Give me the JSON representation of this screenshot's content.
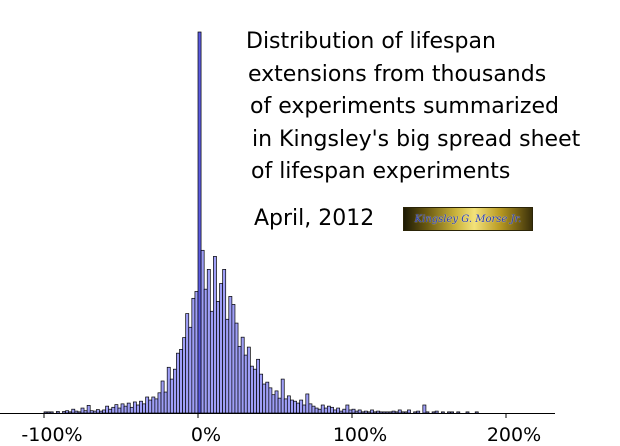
{
  "chart_data": {
    "type": "bar",
    "title_lines": [
      "Distribution of lifespan",
      "extensions from thousands",
      "of experiments summarized",
      "in Kingsley's big spread sheet",
      "of lifespan experiments"
    ],
    "date": "April, 2012",
    "logo_text": "Kingsley G. Morse Jr.",
    "xlabel": "",
    "ylabel": "",
    "xlim": [
      -105,
      230
    ],
    "ylim": [
      0,
      100
    ],
    "bin_width": 2,
    "x_ticks": [
      -100,
      0,
      100,
      200
    ],
    "x_tick_labels": [
      "-100%",
      "0%",
      "100%",
      "200%"
    ],
    "fill_color": "#9f9ff7",
    "outline_color": "#000000",
    "peak_color": "#5a5ae0",
    "bins": [
      {
        "x": -100,
        "y": 0.3
      },
      {
        "x": -98,
        "y": 0.3
      },
      {
        "x": -96,
        "y": 0.3
      },
      {
        "x": -94,
        "y": 0
      },
      {
        "x": -92,
        "y": 0.4
      },
      {
        "x": -90,
        "y": 0
      },
      {
        "x": -88,
        "y": 0.4
      },
      {
        "x": -86,
        "y": 0.6
      },
      {
        "x": -84,
        "y": 0.3
      },
      {
        "x": -82,
        "y": 1.0
      },
      {
        "x": -80,
        "y": 0.5
      },
      {
        "x": -78,
        "y": 0.3
      },
      {
        "x": -76,
        "y": 1.3
      },
      {
        "x": -74,
        "y": 0.6
      },
      {
        "x": -72,
        "y": 2.0
      },
      {
        "x": -70,
        "y": 0.6
      },
      {
        "x": -68,
        "y": 0.5
      },
      {
        "x": -66,
        "y": 0.9
      },
      {
        "x": -64,
        "y": 0.5
      },
      {
        "x": -62,
        "y": 0.8
      },
      {
        "x": -60,
        "y": 1.8
      },
      {
        "x": -58,
        "y": 1.0
      },
      {
        "x": -56,
        "y": 1.5
      },
      {
        "x": -54,
        "y": 2.2
      },
      {
        "x": -52,
        "y": 1.3
      },
      {
        "x": -50,
        "y": 2.4
      },
      {
        "x": -48,
        "y": 1.8
      },
      {
        "x": -46,
        "y": 2.6
      },
      {
        "x": -44,
        "y": 1.5
      },
      {
        "x": -42,
        "y": 2.9
      },
      {
        "x": -40,
        "y": 2.1
      },
      {
        "x": -38,
        "y": 3.1
      },
      {
        "x": -36,
        "y": 2.4
      },
      {
        "x": -34,
        "y": 4.2
      },
      {
        "x": -32,
        "y": 3.4
      },
      {
        "x": -30,
        "y": 4.2
      },
      {
        "x": -28,
        "y": 3.7
      },
      {
        "x": -26,
        "y": 5.3
      },
      {
        "x": -24,
        "y": 8.4
      },
      {
        "x": -22,
        "y": 5.5
      },
      {
        "x": -20,
        "y": 12.0
      },
      {
        "x": -18,
        "y": 8.9
      },
      {
        "x": -16,
        "y": 11.5
      },
      {
        "x": -14,
        "y": 15.7
      },
      {
        "x": -12,
        "y": 16.7
      },
      {
        "x": -10,
        "y": 19.8
      },
      {
        "x": -8,
        "y": 26.1
      },
      {
        "x": -6,
        "y": 22.5
      },
      {
        "x": -4,
        "y": 30.1
      },
      {
        "x": -2,
        "y": 31.9
      },
      {
        "x": 0,
        "y": 100.0
      },
      {
        "x": 2,
        "y": 42.7
      },
      {
        "x": 4,
        "y": 32.5
      },
      {
        "x": 6,
        "y": 37.7
      },
      {
        "x": 8,
        "y": 26.7
      },
      {
        "x": 10,
        "y": 41.1
      },
      {
        "x": 12,
        "y": 29.3
      },
      {
        "x": 14,
        "y": 34.0
      },
      {
        "x": 16,
        "y": 37.7
      },
      {
        "x": 18,
        "y": 24.6
      },
      {
        "x": 20,
        "y": 30.6
      },
      {
        "x": 22,
        "y": 28.5
      },
      {
        "x": 24,
        "y": 23.6
      },
      {
        "x": 26,
        "y": 17.5
      },
      {
        "x": 28,
        "y": 19.9
      },
      {
        "x": 30,
        "y": 15.2
      },
      {
        "x": 32,
        "y": 17.3
      },
      {
        "x": 34,
        "y": 12.3
      },
      {
        "x": 36,
        "y": 11.5
      },
      {
        "x": 38,
        "y": 14.1
      },
      {
        "x": 40,
        "y": 10.2
      },
      {
        "x": 42,
        "y": 7.6
      },
      {
        "x": 44,
        "y": 8.1
      },
      {
        "x": 46,
        "y": 6.6
      },
      {
        "x": 48,
        "y": 4.8
      },
      {
        "x": 50,
        "y": 5.8
      },
      {
        "x": 52,
        "y": 3.9
      },
      {
        "x": 54,
        "y": 8.9
      },
      {
        "x": 56,
        "y": 3.7
      },
      {
        "x": 58,
        "y": 4.5
      },
      {
        "x": 60,
        "y": 3.4
      },
      {
        "x": 62,
        "y": 3.1
      },
      {
        "x": 64,
        "y": 2.6
      },
      {
        "x": 66,
        "y": 3.4
      },
      {
        "x": 68,
        "y": 2.1
      },
      {
        "x": 70,
        "y": 5.0
      },
      {
        "x": 72,
        "y": 2.4
      },
      {
        "x": 74,
        "y": 1.8
      },
      {
        "x": 76,
        "y": 1.3
      },
      {
        "x": 78,
        "y": 1.0
      },
      {
        "x": 80,
        "y": 2.1
      },
      {
        "x": 82,
        "y": 1.3
      },
      {
        "x": 84,
        "y": 1.8
      },
      {
        "x": 86,
        "y": 1.5
      },
      {
        "x": 88,
        "y": 0.8
      },
      {
        "x": 90,
        "y": 1.3
      },
      {
        "x": 92,
        "y": 0.5
      },
      {
        "x": 94,
        "y": 1.0
      },
      {
        "x": 96,
        "y": 2.1
      },
      {
        "x": 98,
        "y": 0.8
      },
      {
        "x": 100,
        "y": 1.0
      },
      {
        "x": 102,
        "y": 0.5
      },
      {
        "x": 104,
        "y": 0.8
      },
      {
        "x": 106,
        "y": 0.3
      },
      {
        "x": 108,
        "y": 0.5
      },
      {
        "x": 110,
        "y": 0.3
      },
      {
        "x": 112,
        "y": 0.8
      },
      {
        "x": 114,
        "y": 0.3
      },
      {
        "x": 116,
        "y": 0.5
      },
      {
        "x": 118,
        "y": 0.3
      },
      {
        "x": 120,
        "y": 0.3
      },
      {
        "x": 122,
        "y": 0.3
      },
      {
        "x": 124,
        "y": 0.3
      },
      {
        "x": 126,
        "y": 0.5
      },
      {
        "x": 128,
        "y": 0.3
      },
      {
        "x": 130,
        "y": 0.8
      },
      {
        "x": 132,
        "y": 0.3
      },
      {
        "x": 134,
        "y": 0.3
      },
      {
        "x": 136,
        "y": 0.8
      },
      {
        "x": 138,
        "y": 0
      },
      {
        "x": 140,
        "y": 0.3
      },
      {
        "x": 142,
        "y": 0.5
      },
      {
        "x": 144,
        "y": 0
      },
      {
        "x": 146,
        "y": 2.1
      },
      {
        "x": 148,
        "y": 0.3
      },
      {
        "x": 150,
        "y": 0
      },
      {
        "x": 152,
        "y": 0.3
      },
      {
        "x": 154,
        "y": 0.5
      },
      {
        "x": 156,
        "y": 0
      },
      {
        "x": 158,
        "y": 0.3
      },
      {
        "x": 160,
        "y": 0
      },
      {
        "x": 162,
        "y": 0.3
      },
      {
        "x": 164,
        "y": 0.3
      },
      {
        "x": 166,
        "y": 0
      },
      {
        "x": 168,
        "y": 0.3
      },
      {
        "x": 170,
        "y": 0
      },
      {
        "x": 172,
        "y": 0
      },
      {
        "x": 174,
        "y": 0.3
      },
      {
        "x": 176,
        "y": 0
      },
      {
        "x": 178,
        "y": 0
      },
      {
        "x": 180,
        "y": 0.3
      }
    ]
  }
}
